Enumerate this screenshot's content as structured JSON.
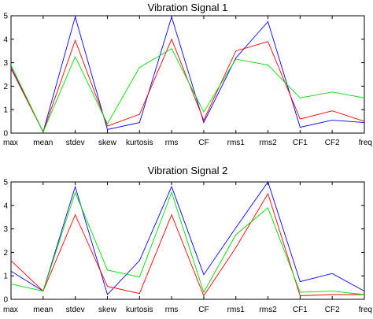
{
  "chart_data": [
    {
      "type": "line",
      "title": "Vibration Signal 1",
      "categories": [
        "max",
        "mean",
        "stdev",
        "skew",
        "kurtosis",
        "rms",
        "CF",
        "rms1",
        "rms2",
        "CF1",
        "CF2",
        "freq"
      ],
      "ylim": [
        0,
        5
      ],
      "yticks": [
        0,
        1,
        2,
        3,
        4,
        5
      ],
      "grid": false,
      "series": [
        {
          "color": "#0000ff",
          "values": [
            2.8,
            0.05,
            4.95,
            0.15,
            0.45,
            4.95,
            0.45,
            3.2,
            4.75,
            0.25,
            0.55,
            0.45
          ]
        },
        {
          "color": "#ff0000",
          "values": [
            2.75,
            0.05,
            3.95,
            0.3,
            0.8,
            4.0,
            0.55,
            3.5,
            3.9,
            0.6,
            0.95,
            0.5
          ]
        },
        {
          "color": "#00dd00",
          "values": [
            2.9,
            0.05,
            3.25,
            0.4,
            2.8,
            3.6,
            0.9,
            3.15,
            2.9,
            1.5,
            1.75,
            1.5
          ]
        }
      ]
    },
    {
      "type": "line",
      "title": "Vibration Signal 2",
      "categories": [
        "max",
        "mean",
        "stdev",
        "skew",
        "kurtosis",
        "rms",
        "CF",
        "rms1",
        "rms2",
        "CF1",
        "CF2",
        "freq"
      ],
      "ylim": [
        0,
        5
      ],
      "yticks": [
        0,
        1,
        2,
        3,
        4,
        5
      ],
      "grid": false,
      "series": [
        {
          "color": "#0000ff",
          "values": [
            1.2,
            0.35,
            4.8,
            0.2,
            1.65,
            4.8,
            1.05,
            3.05,
            5.0,
            0.75,
            1.1,
            0.35
          ]
        },
        {
          "color": "#ff0000",
          "values": [
            1.65,
            0.35,
            3.6,
            0.55,
            0.25,
            3.6,
            0.15,
            2.2,
            4.5,
            0.15,
            0.2,
            0.2
          ]
        },
        {
          "color": "#00dd00",
          "values": [
            0.65,
            0.35,
            4.55,
            1.25,
            0.95,
            4.55,
            0.3,
            2.75,
            3.9,
            0.3,
            0.35,
            0.2
          ]
        }
      ]
    }
  ]
}
